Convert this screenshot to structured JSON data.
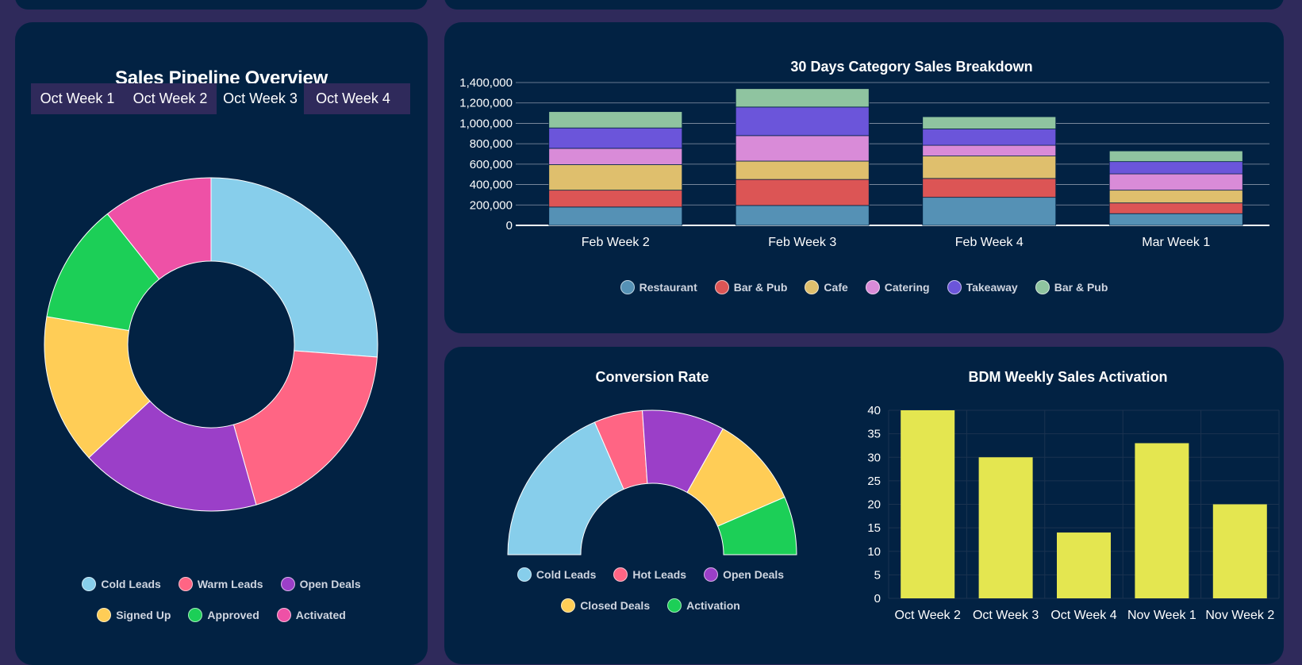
{
  "pipeline": {
    "title": "Sales Pipeline Overview",
    "tabs": [
      "Oct Week 1",
      "Oct Week 2",
      "Oct Week 3",
      "Oct Week 4"
    ],
    "active_tab": 2
  },
  "colors": {
    "background": "#2f2a5b",
    "card": "#022243",
    "text": "#ffffff",
    "legend_text": "#cfd5e0",
    "gridline": "#8a96a8"
  },
  "chart_data": [
    {
      "id": "pipeline",
      "type": "doughnut",
      "title": "Sales Pipeline Overview",
      "labels": [
        "Cold Leads",
        "Warm Leads",
        "Open Deals",
        "Signed Up",
        "Approved",
        "Activated"
      ],
      "values": [
        27,
        20,
        18,
        15,
        12,
        11
      ],
      "colors": [
        "#87ceeb",
        "#ff6584",
        "#9b3fc8",
        "#ffcd56",
        "#1ccf57",
        "#ee51a6"
      ]
    },
    {
      "id": "category",
      "type": "bar",
      "stacked": true,
      "title": "30 Days Category Sales Breakdown",
      "categories": [
        "Feb Week 2",
        "Feb Week 3",
        "Feb Week 4",
        "Mar Week 1"
      ],
      "series": [
        {
          "name": "Restaurant",
          "color": "#5591b5",
          "values": [
            180000,
            195000,
            275000,
            115000
          ]
        },
        {
          "name": "Bar & Pub",
          "color": "#dc5555",
          "values": [
            165000,
            255000,
            185000,
            105000
          ]
        },
        {
          "name": "Cafe",
          "color": "#dfbf6d",
          "values": [
            250000,
            180000,
            220000,
            125000
          ]
        },
        {
          "name": "Catering",
          "color": "#d98bd8",
          "values": [
            160000,
            250000,
            105000,
            160000
          ]
        },
        {
          "name": "Takeaway",
          "color": "#6b55da",
          "values": [
            200000,
            280000,
            160000,
            120000
          ]
        },
        {
          "name": "Bar & Pub",
          "color": "#8fc4a0",
          "values": [
            160000,
            180000,
            120000,
            105000
          ]
        }
      ],
      "ylim": [
        0,
        1400000
      ],
      "yticks": [
        "0",
        "200,000",
        "400,000",
        "600,000",
        "800,000",
        "1,000,000",
        "1,200,000",
        "1,400,000"
      ]
    },
    {
      "id": "conversion",
      "type": "doughnut",
      "half": true,
      "title": "Conversion Rate",
      "labels": [
        "Cold Leads",
        "Hot Leads",
        "Open Deals",
        "Closed Deals",
        "Activation"
      ],
      "values": [
        34,
        10,
        17,
        19,
        12
      ],
      "colors": [
        "#87ceeb",
        "#ff6584",
        "#9b3fc8",
        "#ffcd56",
        "#1ccf57"
      ]
    },
    {
      "id": "bdm",
      "type": "bar",
      "title": "BDM Weekly Sales Activation",
      "categories": [
        "Oct Week 2",
        "Oct Week 3",
        "Oct Week 4",
        "Nov Week 1",
        "Nov Week 2"
      ],
      "values": [
        40,
        30,
        14,
        33,
        20
      ],
      "color": "#e4e650",
      "ylim": [
        0,
        40
      ],
      "yticks": [
        "0",
        "5",
        "10",
        "15",
        "20",
        "25",
        "30",
        "35",
        "40"
      ]
    }
  ]
}
